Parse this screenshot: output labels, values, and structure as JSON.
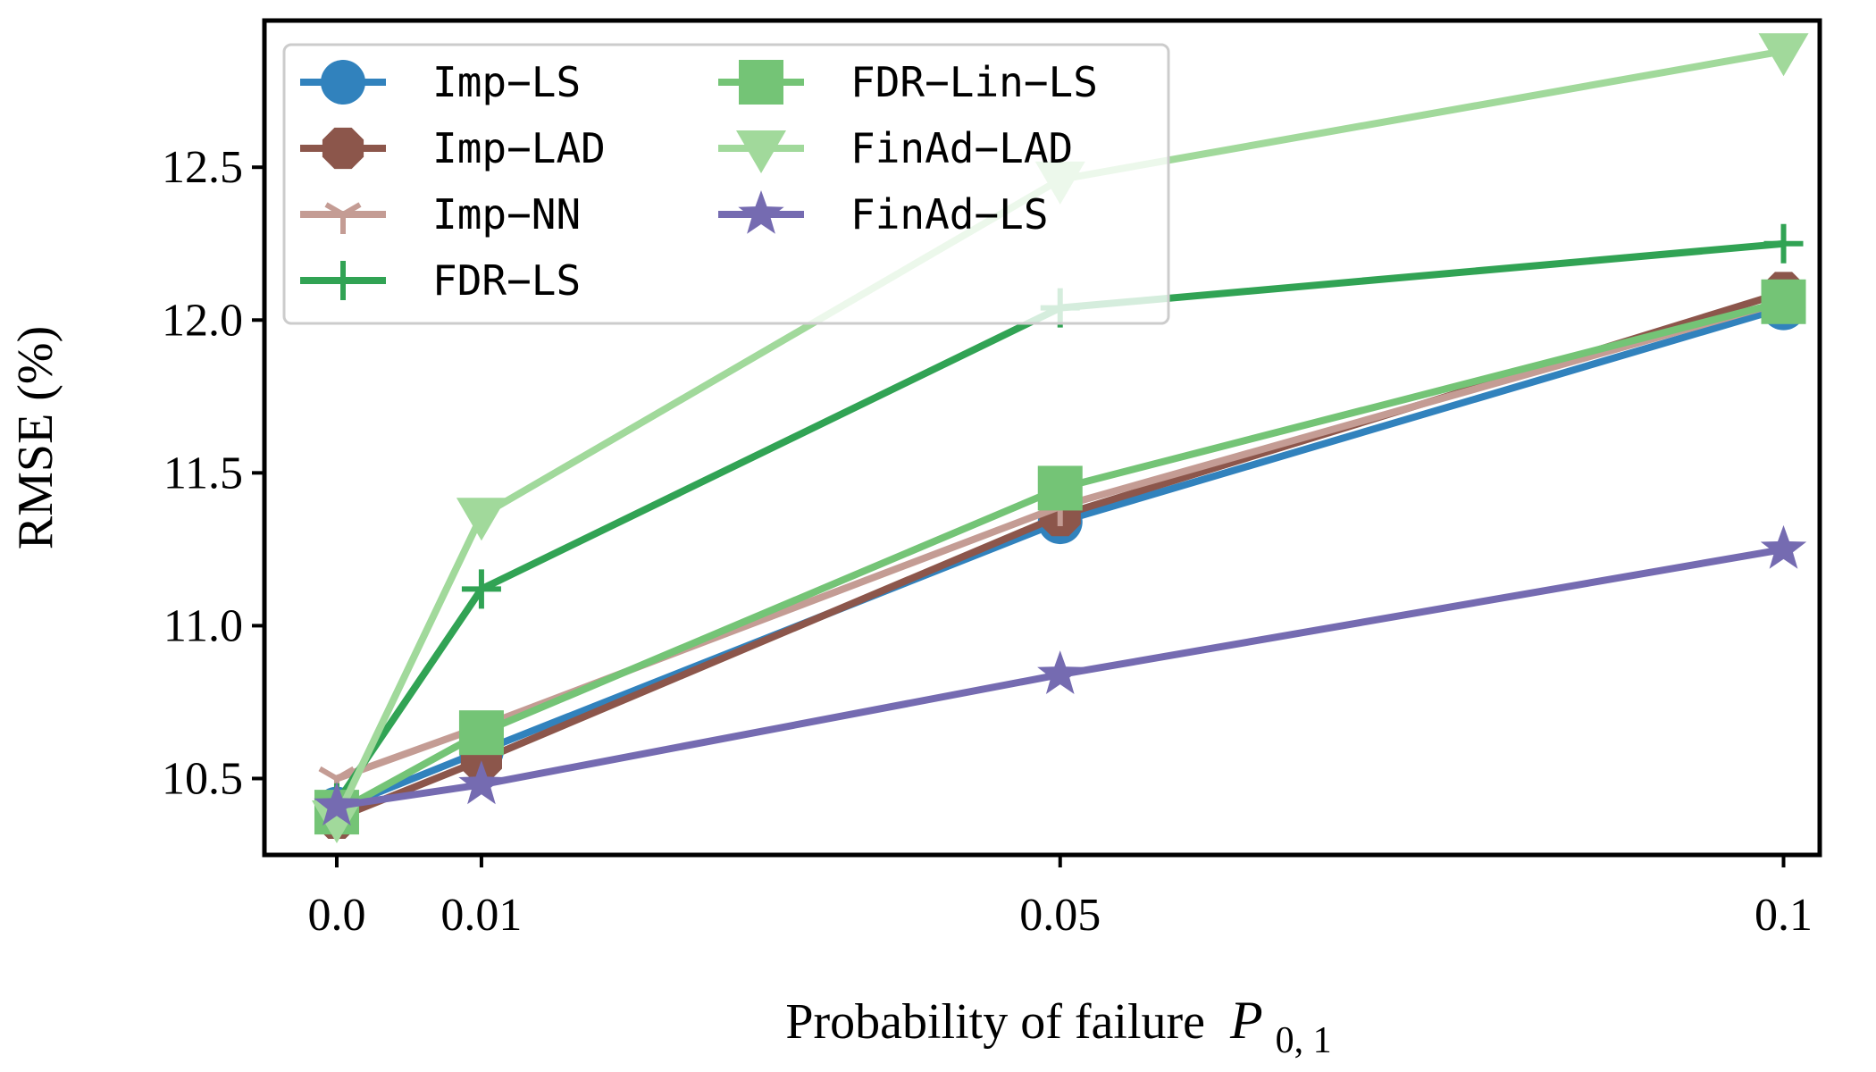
{
  "chart_data": {
    "type": "line",
    "title": "",
    "xlabel": "Probability of failure",
    "xlabel_math": "P",
    "xlabel_subscript": "0, 1",
    "ylabel": "RMSE (%)",
    "x": [
      0.0,
      0.01,
      0.05,
      0.1
    ],
    "x_tick_labels": [
      "0.0",
      "0.01",
      "0.05",
      "0.1"
    ],
    "y_ticks": [
      10.5,
      11.0,
      11.5,
      12.0,
      12.5
    ],
    "y_tick_labels": [
      "10.5",
      "11.0",
      "11.5",
      "12.0",
      "12.5"
    ],
    "xlim": [
      -0.005,
      0.1025
    ],
    "ylim": [
      10.25,
      12.98
    ],
    "grid": false,
    "legend_position": "upper-left",
    "legend_columns": 2,
    "series": [
      {
        "name": "Imp−LS",
        "marker": "circle",
        "color": "#3182bd",
        "values": [
          10.4,
          10.59,
          11.34,
          12.04
        ]
      },
      {
        "name": "Imp−LAD",
        "marker": "octagon",
        "color": "#8c564b",
        "values": [
          10.37,
          10.56,
          11.36,
          12.09
        ]
      },
      {
        "name": "Imp−NN",
        "marker": "tri-down",
        "color": "#c49c94",
        "values": [
          10.5,
          10.67,
          11.39,
          12.06
        ]
      },
      {
        "name": "FDR−LS",
        "marker": "plus",
        "color": "#31a354",
        "values": [
          10.42,
          11.12,
          12.04,
          12.25
        ]
      },
      {
        "name": "FDR−Lin−LS",
        "marker": "square",
        "color": "#74c476",
        "values": [
          10.39,
          10.65,
          11.45,
          12.06
        ]
      },
      {
        "name": "FinAd−LAD",
        "marker": "triangle-down",
        "color": "#a1d99b",
        "values": [
          10.37,
          11.36,
          12.46,
          12.88
        ]
      },
      {
        "name": "FinAd−LS",
        "marker": "star",
        "color": "#756bb1",
        "values": [
          10.41,
          10.48,
          10.84,
          11.25
        ]
      }
    ]
  }
}
